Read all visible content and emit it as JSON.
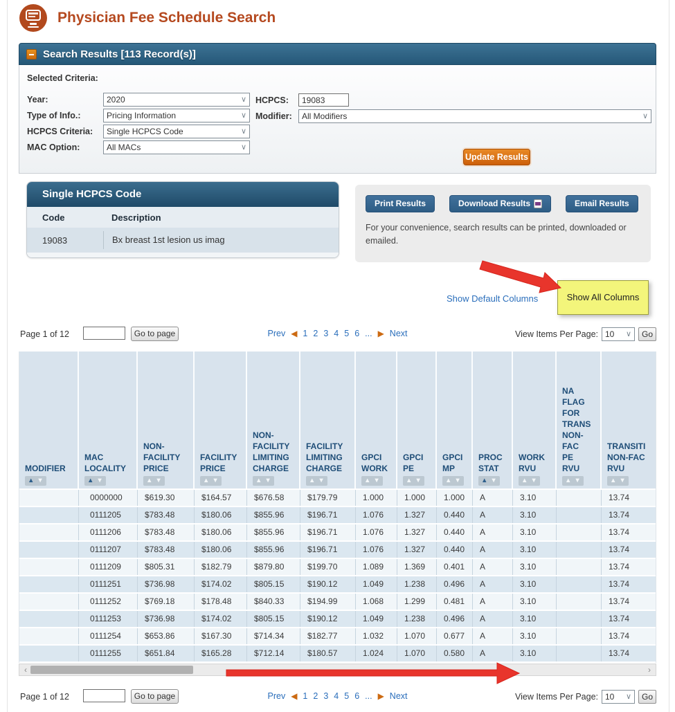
{
  "page": {
    "title": "Physician Fee Schedule Search"
  },
  "search_results": {
    "title": "Search Results [113 Record(s)]"
  },
  "criteria": {
    "heading": "Selected Criteria:",
    "year_label": "Year:",
    "year_value": "2020",
    "type_label": "Type of Info.:",
    "type_value": "Pricing Information",
    "hcpcs_criteria_label": "HCPCS Criteria:",
    "hcpcs_criteria_value": "Single HCPCS Code",
    "mac_label": "MAC Option:",
    "mac_value": "All MACs",
    "hcpcs_label": "HCPCS:",
    "hcpcs_value": "19083",
    "modifier_label": "Modifier:",
    "modifier_value": "All Modifiers",
    "update_button": "Update Results"
  },
  "hcpcs_card": {
    "title": "Single HCPCS Code",
    "col_code": "Code",
    "col_desc": "Description",
    "rows": [
      {
        "code": "19083",
        "description": "Bx breast 1st lesion us imag"
      }
    ]
  },
  "export_panel": {
    "print": "Print Results",
    "download": "Download Results",
    "email": "Email Results",
    "note": "For your convenience, search results can be printed, downloaded or emailed."
  },
  "column_toggle": {
    "show_default": "Show Default Columns",
    "show_all": "Show All Columns"
  },
  "pagination": {
    "page_label": "Page 1 of 12",
    "goto_button": "Go to page",
    "prev": "Prev",
    "pages": [
      "1",
      "2",
      "3",
      "4",
      "5",
      "6"
    ],
    "ellipsis": "...",
    "next": "Next",
    "per_page_label": "View Items Per Page:",
    "per_page_value": "10",
    "go_button": "Go"
  },
  "table": {
    "headers": [
      {
        "label": "MODIFIER",
        "sort_active": true
      },
      {
        "label": "MAC\nLOCALITY",
        "sort_active": true
      },
      {
        "label": "NON-\nFACILITY\nPRICE",
        "sort_active": false
      },
      {
        "label": "FACILITY\nPRICE",
        "sort_active": false
      },
      {
        "label": "NON-\nFACILITY\nLIMITING\nCHARGE",
        "sort_active": false
      },
      {
        "label": "FACILITY\nLIMITING\nCHARGE",
        "sort_active": false
      },
      {
        "label": "GPCI\nWORK",
        "sort_active": false
      },
      {
        "label": "GPCI\nPE",
        "sort_active": false
      },
      {
        "label": "GPCI\nMP",
        "sort_active": false
      },
      {
        "label": "PROC\nSTAT",
        "sort_active": true
      },
      {
        "label": "WORK\nRVU",
        "sort_active": false
      },
      {
        "label": "NA\nFLAG\nFOR\nTRANS\nNON-\nFAC\nPE\nRVU",
        "sort_active": false
      },
      {
        "label": "TRANSITI\nNON-FAC\nRVU",
        "sort_active": false
      }
    ],
    "rows": [
      [
        "",
        "0000000",
        "$619.30",
        "$164.57",
        "$676.58",
        "$179.79",
        "1.000",
        "1.000",
        "1.000",
        "A",
        "3.10",
        "",
        "13.74"
      ],
      [
        "",
        "0111205",
        "$783.48",
        "$180.06",
        "$855.96",
        "$196.71",
        "1.076",
        "1.327",
        "0.440",
        "A",
        "3.10",
        "",
        "13.74"
      ],
      [
        "",
        "0111206",
        "$783.48",
        "$180.06",
        "$855.96",
        "$196.71",
        "1.076",
        "1.327",
        "0.440",
        "A",
        "3.10",
        "",
        "13.74"
      ],
      [
        "",
        "0111207",
        "$783.48",
        "$180.06",
        "$855.96",
        "$196.71",
        "1.076",
        "1.327",
        "0.440",
        "A",
        "3.10",
        "",
        "13.74"
      ],
      [
        "",
        "0111209",
        "$805.31",
        "$182.79",
        "$879.80",
        "$199.70",
        "1.089",
        "1.369",
        "0.401",
        "A",
        "3.10",
        "",
        "13.74"
      ],
      [
        "",
        "0111251",
        "$736.98",
        "$174.02",
        "$805.15",
        "$190.12",
        "1.049",
        "1.238",
        "0.496",
        "A",
        "3.10",
        "",
        "13.74"
      ],
      [
        "",
        "0111252",
        "$769.18",
        "$178.48",
        "$840.33",
        "$194.99",
        "1.068",
        "1.299",
        "0.481",
        "A",
        "3.10",
        "",
        "13.74"
      ],
      [
        "",
        "0111253",
        "$736.98",
        "$174.02",
        "$805.15",
        "$190.12",
        "1.049",
        "1.238",
        "0.496",
        "A",
        "3.10",
        "",
        "13.74"
      ],
      [
        "",
        "0111254",
        "$653.86",
        "$167.30",
        "$714.34",
        "$182.77",
        "1.032",
        "1.070",
        "0.677",
        "A",
        "3.10",
        "",
        "13.74"
      ],
      [
        "",
        "0111255",
        "$651.84",
        "$165.28",
        "$712.14",
        "$180.57",
        "1.024",
        "1.070",
        "0.580",
        "A",
        "3.10",
        "",
        "13.74"
      ]
    ]
  },
  "colors": {
    "accent_orange": "#cc5f0a",
    "header_blue": "#2e5d85",
    "link_blue": "#2a6ebb",
    "highlight_yellow": "#f3f57b",
    "annotation_red": "#e8352c"
  }
}
